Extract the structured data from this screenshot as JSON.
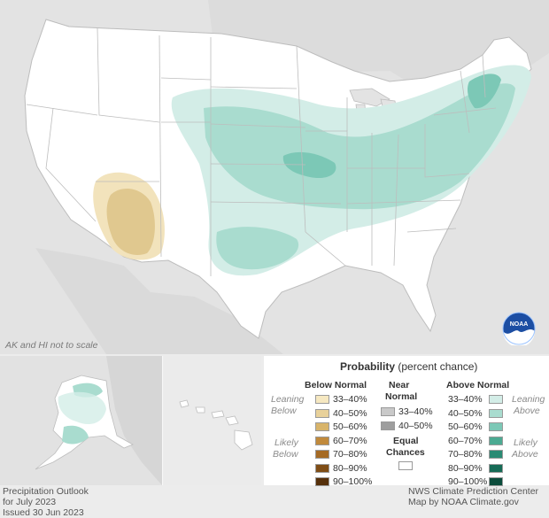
{
  "map": {
    "inset_note": "AK and HI not to scale",
    "logo": "noaa-logo",
    "logo_text": "NOAA",
    "colors": {
      "land": "#ffffff",
      "background": "#e3e3e3",
      "above_33_40": "#d3ede7",
      "above_40_50": "#a9dccf",
      "above_50_60": "#7cc8b6",
      "below_33_40": "#f2e3bc",
      "below_40_50": "#e0c88f"
    }
  },
  "legend": {
    "title": "Probability",
    "title_sub": "(percent chance)",
    "below": {
      "header": "Below Normal",
      "leaning": [
        "Leaning",
        "Below"
      ],
      "likely": [
        "Likely",
        "Below"
      ],
      "bins": [
        {
          "label": "33–40%",
          "color": "#f6e8c1"
        },
        {
          "label": "40–50%",
          "color": "#e8d19a"
        },
        {
          "label": "50–60%",
          "color": "#d8b46a"
        },
        {
          "label": "60–70%",
          "color": "#c18a3c"
        },
        {
          "label": "70–80%",
          "color": "#a56a24"
        },
        {
          "label": "80–90%",
          "color": "#7f4d16"
        },
        {
          "label": "90–100%",
          "color": "#56300b"
        }
      ]
    },
    "near": {
      "header": [
        "Near",
        "Normal"
      ],
      "bins": [
        {
          "label": "33–40%",
          "color": "#c9c9c9"
        },
        {
          "label": "40–50%",
          "color": "#9e9e9e"
        }
      ]
    },
    "equal": {
      "label": [
        "Equal",
        "Chances"
      ],
      "color": "#ffffff"
    },
    "above": {
      "header": "Above Normal",
      "leaning": [
        "Leaning",
        "Above"
      ],
      "likely": [
        "Likely",
        "Above"
      ],
      "bins": [
        {
          "label": "33–40%",
          "color": "#d3ede7"
        },
        {
          "label": "40–50%",
          "color": "#a9dccf"
        },
        {
          "label": "50–60%",
          "color": "#7cc8b6"
        },
        {
          "label": "60–70%",
          "color": "#4caa92"
        },
        {
          "label": "70–80%",
          "color": "#2a8a73"
        },
        {
          "label": "80–90%",
          "color": "#166b56"
        },
        {
          "label": "90–100%",
          "color": "#0b4c3b"
        }
      ]
    }
  },
  "footer": {
    "left": [
      "Precipitation Outlook",
      "for July 2023",
      "Issued 30 Jun 2023"
    ],
    "right": [
      "NWS Climate Prediction Center",
      "Map by NOAA Climate.gov"
    ]
  }
}
